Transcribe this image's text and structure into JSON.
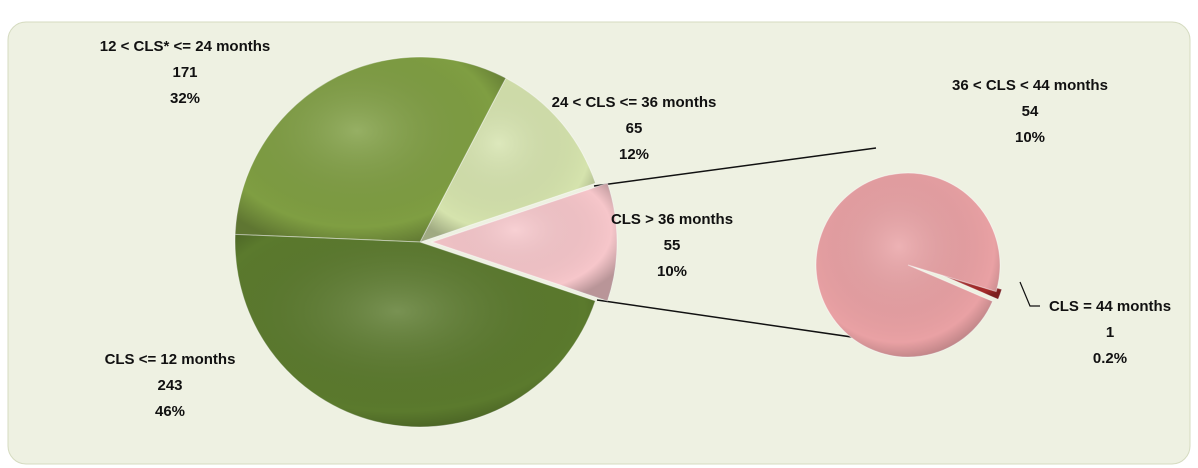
{
  "chart_data": {
    "type": "pie-of-pie",
    "main": {
      "categories": [
        "CLS > 36 months",
        "24 < CLS <= 36 months",
        "12 < CLS* <= 24 months",
        "CLS <= 12 months"
      ],
      "values": [
        55,
        65,
        171,
        243
      ],
      "percent_labels": [
        "10%",
        "12%",
        "32%",
        "46%"
      ],
      "colors": [
        "#f6c6ca",
        "#d5e3ad",
        "#7f9e42",
        "#5b7a2d"
      ]
    },
    "secondary": {
      "categories": [
        "CLS = 44 months",
        "36 < CLS < 44 months"
      ],
      "values": [
        1,
        54
      ],
      "percent_labels": [
        "0.2%",
        "10%"
      ],
      "colors": [
        "#a52a2a",
        "#e9a1a4"
      ]
    }
  }
}
